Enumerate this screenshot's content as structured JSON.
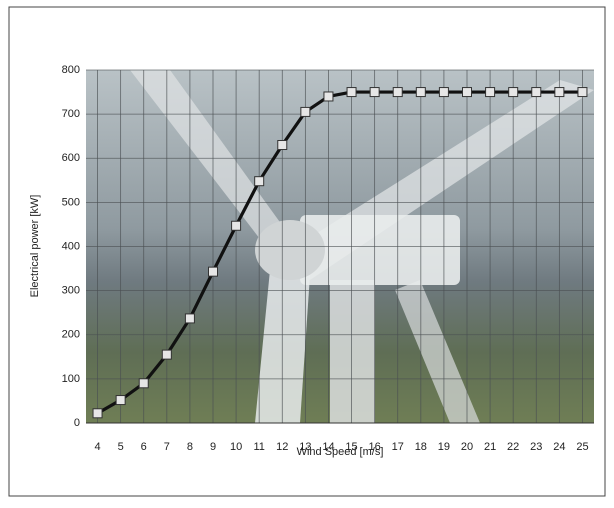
{
  "chart_data": {
    "type": "line",
    "x_label": "Wind Speed [m/s]",
    "y_label": "Electrical power [kW]",
    "x": [
      4,
      5,
      6,
      7,
      8,
      9,
      10,
      11,
      12,
      13,
      14,
      15,
      16,
      17,
      18,
      19,
      20,
      21,
      22,
      23,
      24,
      25
    ],
    "series": [
      {
        "color": "#111111",
        "values": [
          22,
          52,
          90,
          155,
          237,
          343,
          447,
          548,
          630,
          705,
          740,
          750,
          750,
          750,
          750,
          750,
          750,
          750,
          750,
          750,
          750,
          750
        ]
      }
    ],
    "xlim": [
      3.5,
      25.5
    ],
    "xticks": [
      4,
      5,
      6,
      7,
      8,
      9,
      10,
      11,
      12,
      13,
      14,
      15,
      16,
      17,
      18,
      19,
      20,
      21,
      22,
      23,
      24,
      25
    ],
    "ylim": [
      0,
      800
    ],
    "yticks": [
      0,
      100,
      200,
      300,
      400,
      500,
      600,
      700,
      800
    ],
    "grid": true
  }
}
